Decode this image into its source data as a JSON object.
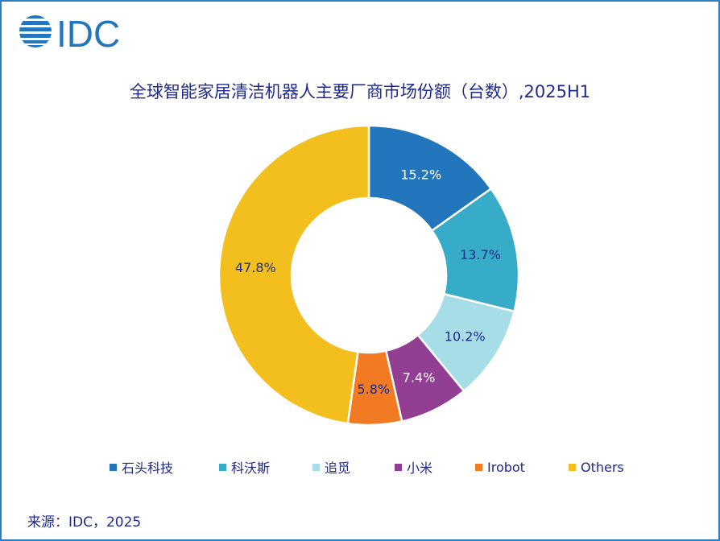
{
  "logo_text": "IDC",
  "chart_data": {
    "type": "pie",
    "donut": true,
    "title": "全球智能家居清洁机器人主要厂商市场份额（台数）,2025H1",
    "categories": [
      "石头科技",
      "科沃斯",
      "追觅",
      "小米",
      "Irobot",
      "Others"
    ],
    "values": [
      15.2,
      13.7,
      10.2,
      7.4,
      5.8,
      47.8
    ],
    "labels": [
      "15.2%",
      "13.7%",
      "10.2%",
      "7.4%",
      "5.8%",
      "47.8%"
    ],
    "colors": [
      "#2376bb",
      "#36acc9",
      "#a6dde7",
      "#923f93",
      "#f27a22",
      "#f2bf1f"
    ],
    "label_colors": [
      "#ffffff",
      "#1e2a8c",
      "#1e2a8c",
      "#ffffff",
      "#1e2a8c",
      "#1e2a8c"
    ],
    "legend_position": "bottom"
  },
  "source": "来源：IDC，2025"
}
